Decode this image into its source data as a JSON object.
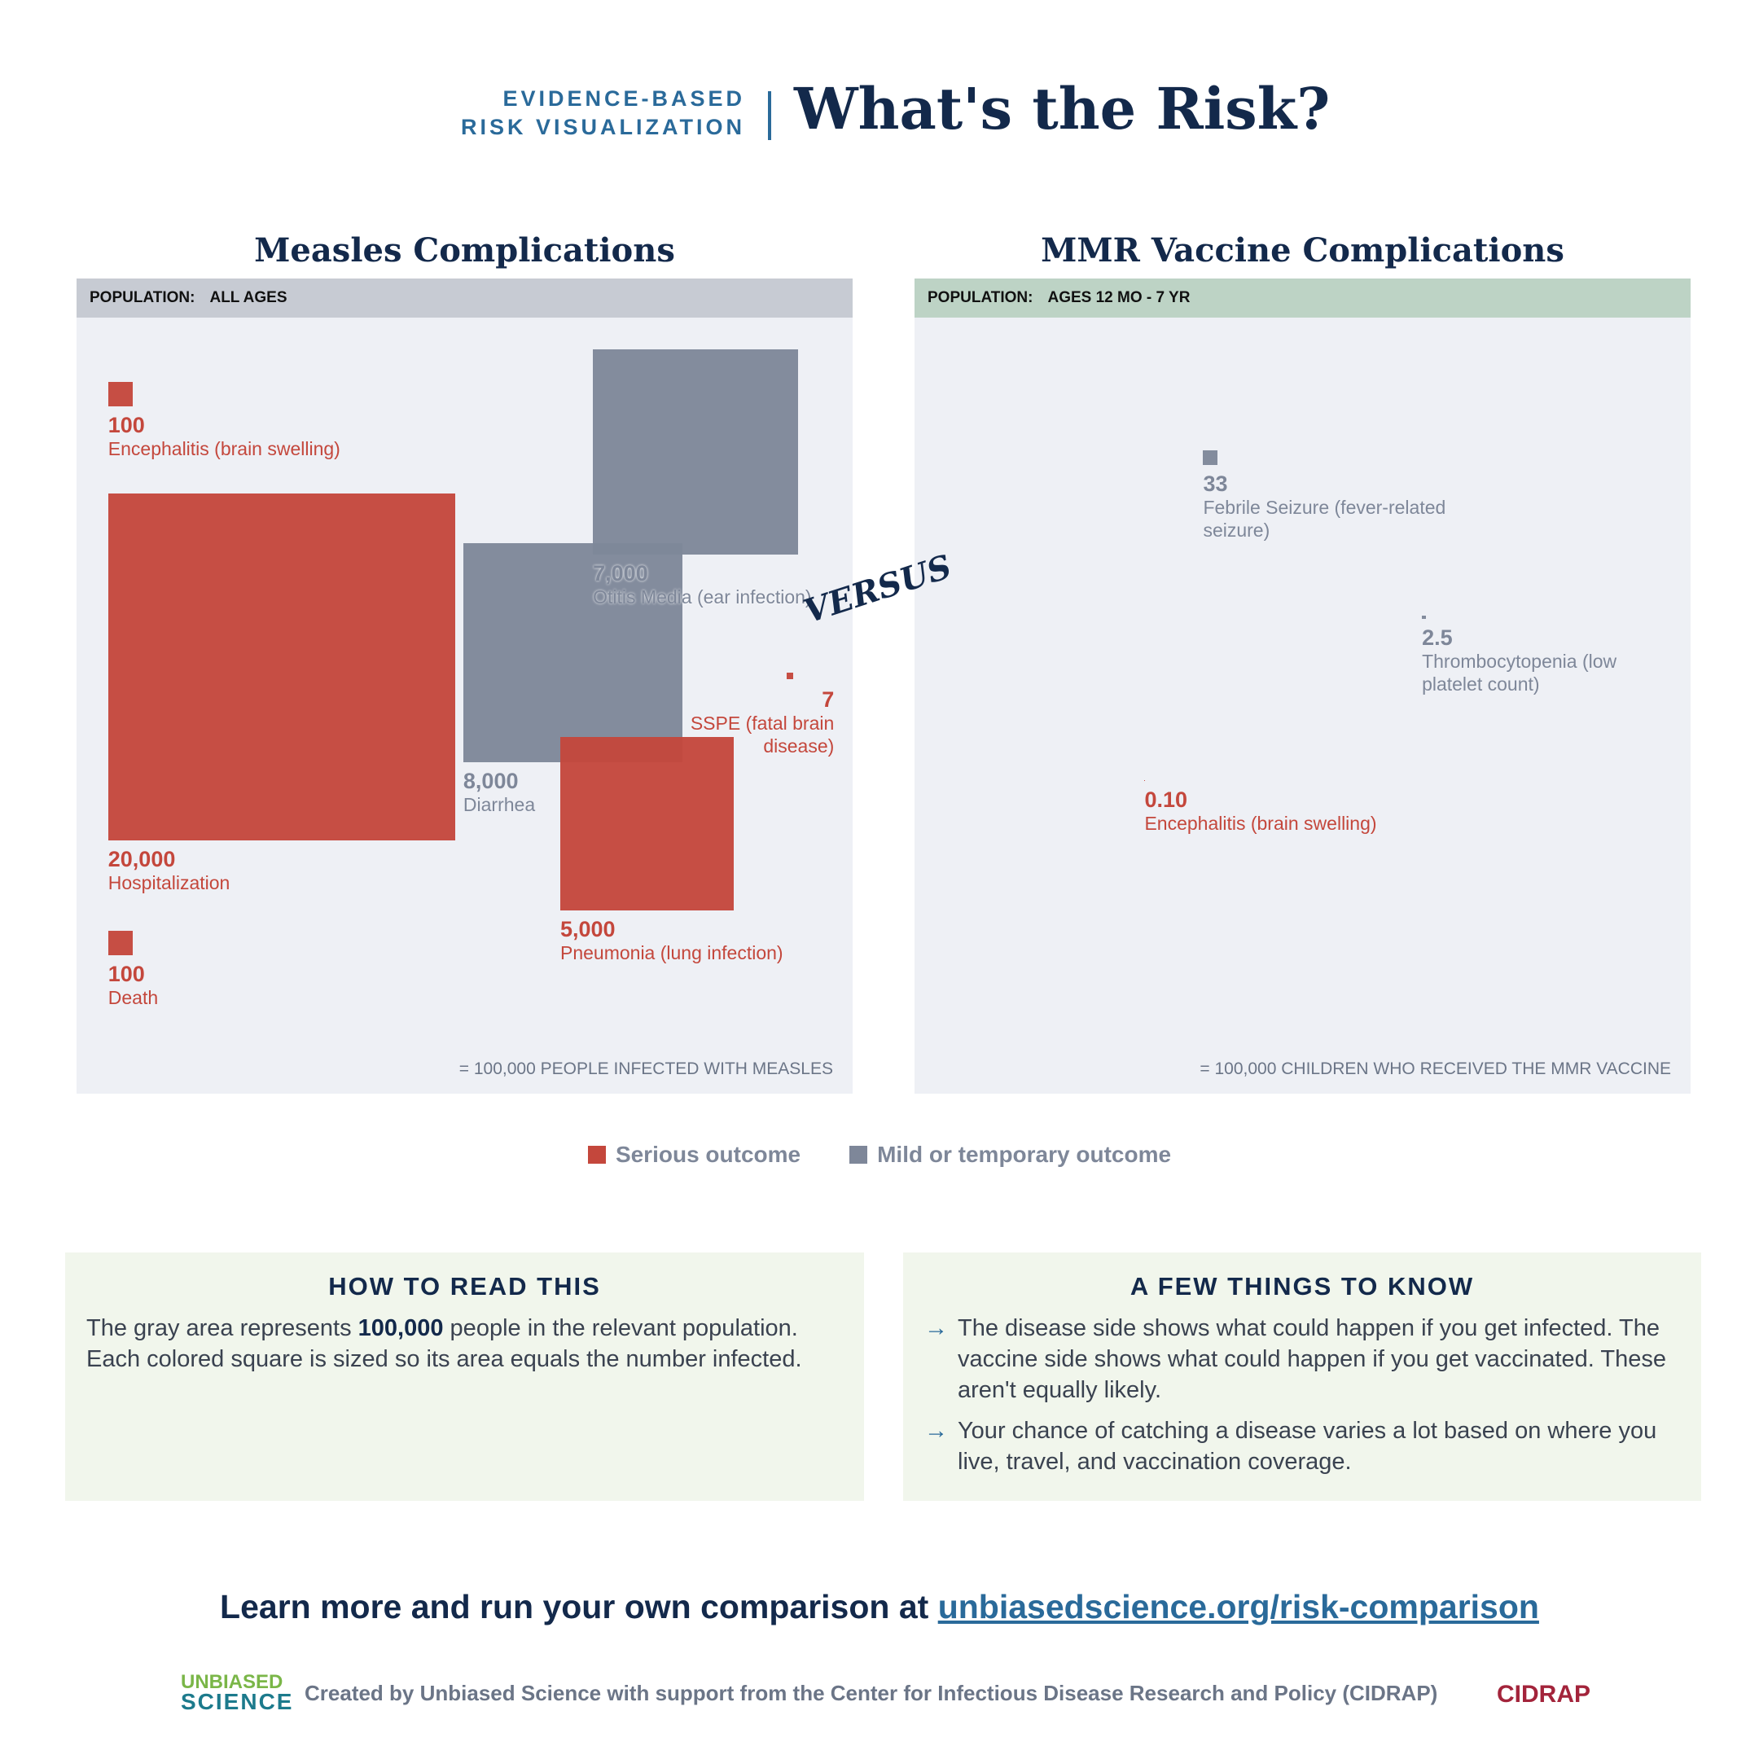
{
  "header": {
    "kicker": [
      "EVIDENCE-BASED",
      "RISK VISUALIZATION"
    ],
    "title": "What's the Risk?"
  },
  "versus": "VERSUS",
  "chart_data": [
    {
      "type": "square-area",
      "title": "Measles Complications",
      "population_label": "POPULATION:",
      "population": "ALL AGES",
      "header_color": "#c7cbd3",
      "footnote": {
        "value": 100000,
        "label": "= 100,000 PEOPLE INFECTED WITH MEASLES"
      },
      "categories": [
        "Encephalitis (brain swelling)",
        "Hospitalization",
        "Otitis Media (ear infection)",
        "Diarrhea",
        "Pneumonia (lung infection)",
        "SSPE (fatal brain disease)",
        "Death"
      ],
      "values": [
        100,
        20000,
        7000,
        8000,
        5000,
        7,
        100
      ],
      "value_labels": [
        "100",
        "20,000",
        "7,000",
        "8,000",
        "5,000",
        "7",
        "100"
      ],
      "colors": [
        "#c4473c",
        "#c4473c",
        "#7e8799",
        "#7e8799",
        "#c4473c",
        "#c4473c",
        "#c4473c"
      ]
    },
    {
      "type": "square-area",
      "title": "MMR Vaccine Complications",
      "population_label": "POPULATION:",
      "population": "AGES 12 MO - 7 YR",
      "header_color": "#bdd3c5",
      "footnote": {
        "value": 100000,
        "label": "= 100,000 CHILDREN WHO RECEIVED THE MMR VACCINE"
      },
      "categories": [
        "Febrile Seizure (fever-related seizure)",
        "Thrombocytopenia (low platelet count)",
        "Encephalitis (brain swelling)"
      ],
      "values": [
        33,
        2.5,
        0.1
      ],
      "value_labels": [
        "33",
        "2.5",
        "0.10"
      ],
      "colors": [
        "#7e8799",
        "#7e8799",
        "#c4473c"
      ]
    }
  ],
  "legend": [
    {
      "name": "Serious outcome",
      "color": "#c4473c"
    },
    {
      "name": "Mild or temporary outcome",
      "color": "#7e8799"
    }
  ],
  "how_to_read": {
    "title": "HOW TO READ THIS",
    "body": [
      "The gray area represents ",
      "100,000",
      " people in the relevant population. Each colored square is sized so its area equals the number infected."
    ]
  },
  "things_to_know": {
    "title": "A FEW THINGS TO KNOW",
    "items": [
      "The disease side shows what could happen if you get infected. The vaccine side shows what could happen if you get vaccinated. These aren't equally likely.",
      "Your chance of catching a disease varies a lot based on where you live, travel, and vaccination coverage."
    ]
  },
  "cta": {
    "text": "Learn more and run your own comparison at ",
    "link": "unbiasedscience.org/risk-comparison"
  },
  "footer": {
    "logo_top": "UNBIASED",
    "logo_bottom": "SCIENCE",
    "credit": "Created by Unbiased Science with support from the Center for Infectious Disease Research and Policy (CIDRAP)",
    "partner": "CIDRAP"
  }
}
